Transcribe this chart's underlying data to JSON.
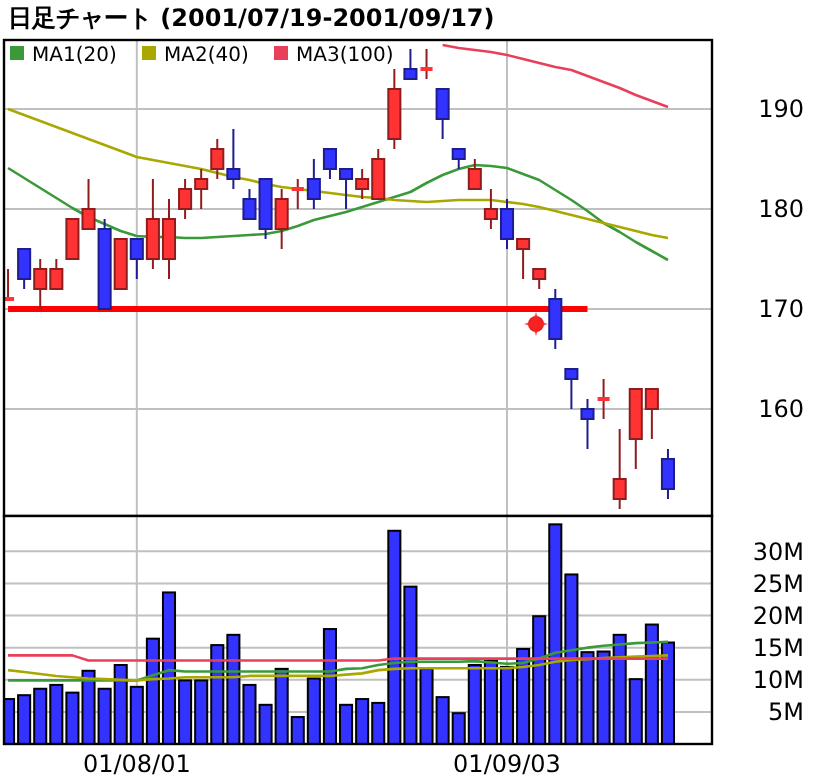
{
  "chart_data": [
    {
      "type": "candlestick",
      "title": "日足チャート (2001/07/19-2001/09/17)",
      "categories": [
        null,
        null,
        null,
        null,
        null,
        null,
        null,
        null,
        null,
        null,
        null,
        null,
        null,
        null,
        null,
        null,
        null,
        null,
        null,
        null,
        null,
        null,
        null,
        null,
        null,
        null,
        null,
        null,
        null,
        null,
        null,
        null,
        null,
        null,
        null,
        null,
        null,
        null,
        null,
        null,
        null,
        null
      ],
      "ohlc": [
        [
          171,
          174,
          171,
          171
        ],
        [
          176,
          176,
          172,
          173
        ],
        [
          172,
          175,
          170,
          174
        ],
        [
          172,
          175,
          172,
          174
        ],
        [
          175,
          179,
          175,
          179
        ],
        [
          178,
          183,
          178,
          180
        ],
        [
          178,
          179,
          170,
          170
        ],
        [
          172,
          177,
          172,
          177
        ],
        [
          177,
          177,
          173,
          175
        ],
        [
          175,
          183,
          174,
          179
        ],
        [
          175,
          181,
          173,
          179
        ],
        [
          180,
          183,
          179,
          182
        ],
        [
          182,
          184,
          180,
          183
        ],
        [
          184,
          187,
          183,
          186
        ],
        [
          184,
          188,
          182,
          183
        ],
        [
          181,
          182,
          179,
          179
        ],
        [
          183,
          183,
          177,
          178
        ],
        [
          178,
          182,
          176,
          181
        ],
        [
          182,
          183,
          180,
          182
        ],
        [
          183,
          185,
          180,
          181
        ],
        [
          186,
          186,
          183,
          184
        ],
        [
          184,
          184,
          180,
          183
        ],
        [
          182,
          184,
          181,
          183
        ],
        [
          181,
          186,
          181,
          185
        ],
        [
          187,
          194,
          186,
          192
        ],
        [
          194,
          196,
          193,
          193
        ],
        [
          194,
          196,
          193,
          194
        ],
        [
          192,
          192,
          187,
          189
        ],
        [
          186,
          186,
          184,
          185
        ],
        [
          182,
          185,
          182,
          184
        ],
        [
          179,
          182,
          178,
          180
        ],
        [
          180,
          181,
          176,
          177
        ],
        [
          176,
          177,
          173,
          177
        ],
        [
          173,
          174,
          172,
          174
        ],
        [
          171,
          172,
          166,
          167
        ],
        [
          164,
          164,
          160,
          163
        ],
        [
          160,
          161,
          156,
          159
        ],
        [
          161,
          163,
          159,
          161
        ],
        [
          151,
          158,
          150,
          153
        ],
        [
          157,
          162,
          154,
          162
        ],
        [
          160,
          162,
          157,
          162
        ],
        [
          155,
          156,
          151,
          152
        ]
      ],
      "colors": [
        "#ff3333",
        "#3333ff",
        "#ff3333",
        "#ff3333",
        "#ff3333",
        "#ff3333",
        "#3333ff",
        "#ff3333",
        "#3333ff",
        "#ff3333",
        "#ff3333",
        "#ff3333",
        "#ff3333",
        "#ff3333",
        "#3333ff",
        "#3333ff",
        "#3333ff",
        "#ff3333",
        "#ff3333",
        "#3333ff",
        "#3333ff",
        "#3333ff",
        "#ff3333",
        "#ff3333",
        "#ff3333",
        "#3333ff",
        "#ff3333",
        "#3333ff",
        "#3333ff",
        "#ff3333",
        "#ff3333",
        "#3333ff",
        "#ff3333",
        "#ff3333",
        "#3333ff",
        "#3333ff",
        "#3333ff",
        "#ff3333",
        "#ff3333",
        "#ff3333",
        "#ff3333",
        "#3333ff"
      ],
      "series": [
        {
          "type": "line",
          "name": "MA1(20)",
          "color": "#3a9a3a",
          "values": [
            184.1,
            183.1,
            182.1,
            181.1,
            180.1,
            179.2,
            178.5,
            177.8,
            177.3,
            177.2,
            177.2,
            177.1,
            177.1,
            177.2,
            177.3,
            177.4,
            177.5,
            177.8,
            178.3,
            178.9,
            179.3,
            179.7,
            180.2,
            180.7,
            181.2,
            181.7,
            182.6,
            183.4,
            184.0,
            184.4,
            184.3,
            184.1,
            183.5,
            182.9,
            181.9,
            180.9,
            179.8,
            178.6,
            177.7,
            176.7,
            175.8,
            174.9
          ]
        },
        {
          "type": "line",
          "name": "MA2(40)",
          "color": "#a8a800",
          "values": [
            190.0,
            189.4,
            188.8,
            188.2,
            187.6,
            187.0,
            186.4,
            185.8,
            185.2,
            184.9,
            184.6,
            184.3,
            184.0,
            183.6,
            183.2,
            182.9,
            182.5,
            182.2,
            182.0,
            181.8,
            181.6,
            181.4,
            181.2,
            181.1,
            180.9,
            180.8,
            180.7,
            180.8,
            180.9,
            180.9,
            180.9,
            180.7,
            180.5,
            180.2,
            179.8,
            179.4,
            179.0,
            178.6,
            178.2,
            177.8,
            177.4,
            177.1
          ]
        },
        {
          "type": "line",
          "name": "MA3(100)",
          "color": "#e8405a",
          "values": [
            null,
            null,
            null,
            null,
            null,
            null,
            null,
            null,
            null,
            null,
            null,
            null,
            null,
            null,
            null,
            null,
            null,
            null,
            null,
            null,
            null,
            null,
            null,
            null,
            null,
            null,
            null,
            196.4,
            196.1,
            195.9,
            195.7,
            195.4,
            195.0,
            194.6,
            194.2,
            193.9,
            193.3,
            192.7,
            192.1,
            191.4,
            190.8,
            190.2
          ]
        },
        {
          "type": "line",
          "color": "#ff0000",
          "values": [
            170,
            170,
            170,
            170,
            170,
            170,
            170,
            170,
            170,
            170,
            170,
            170,
            170,
            170,
            170,
            170,
            170,
            170,
            170,
            170,
            170,
            170,
            170,
            170,
            170,
            170,
            170,
            170,
            170,
            170,
            170,
            170,
            170,
            170,
            170,
            170,
            170,
            null,
            null,
            null,
            null,
            null
          ]
        }
      ],
      "ylim": [
        149.3,
        196.9
      ],
      "yticks": [
        160,
        170,
        180,
        190
      ],
      "grid": true,
      "legend": "top left",
      "tick_labels": "y"
    },
    {
      "type": "bar",
      "categories": [
        null,
        null,
        null,
        null,
        null,
        null,
        null,
        null,
        "01/08/01",
        null,
        null,
        null,
        null,
        null,
        null,
        null,
        null,
        null,
        null,
        null,
        null,
        null,
        null,
        null,
        null,
        null,
        null,
        null,
        null,
        null,
        null,
        "01/09/03",
        null,
        null,
        null,
        null,
        null,
        null,
        null,
        null,
        null,
        null
      ],
      "series": [
        {
          "type": "bar",
          "color": "#3333ff",
          "values": [
            7.0,
            7.6,
            8.6,
            9.2,
            8.0,
            11.4,
            8.6,
            12.3,
            8.9,
            16.4,
            23.6,
            9.9,
            9.9,
            15.4,
            17.0,
            9.2,
            6.1,
            11.7,
            4.2,
            10.2,
            17.9,
            6.1,
            7.0,
            6.4,
            33.2,
            24.5,
            11.7,
            7.3,
            4.8,
            12.3,
            13.0,
            12.0,
            14.8,
            19.9,
            34.2,
            26.4,
            14.3,
            14.4,
            17.0,
            10.1,
            18.6,
            15.8
          ]
        },
        {
          "type": "line",
          "color": "#3a9a3a",
          "values": [
            9.9,
            9.9,
            9.9,
            9.9,
            9.9,
            9.9,
            9.9,
            9.9,
            9.9,
            10.7,
            11.5,
            11.3,
            11.3,
            11.3,
            11.3,
            11.3,
            11.3,
            11.3,
            11.3,
            11.3,
            11.3,
            11.7,
            11.8,
            12.3,
            12.6,
            12.8,
            12.8,
            12.8,
            12.8,
            12.9,
            12.7,
            12.5,
            12.6,
            13.3,
            14.2,
            14.6,
            15.0,
            15.3,
            15.5,
            15.7,
            15.8,
            15.9
          ]
        },
        {
          "type": "line",
          "color": "#a8a800",
          "values": [
            11.5,
            11.2,
            10.9,
            10.6,
            10.4,
            10.2,
            10.1,
            10.0,
            9.9,
            10.1,
            10.2,
            10.4,
            10.4,
            10.4,
            10.4,
            10.6,
            10.6,
            10.6,
            10.6,
            10.6,
            10.6,
            10.8,
            11.0,
            11.5,
            11.7,
            11.8,
            11.8,
            11.8,
            11.8,
            11.8,
            11.8,
            11.8,
            12.0,
            12.3,
            12.8,
            13.1,
            13.2,
            13.4,
            13.5,
            13.6,
            13.7,
            13.8
          ]
        },
        {
          "type": "line",
          "color": "#e8405a",
          "values": [
            13.8,
            13.8,
            13.8,
            13.8,
            13.8,
            13.0,
            13.0,
            13.0,
            13.0,
            13.0,
            13.0,
            13.0,
            13.0,
            13.0,
            13.0,
            13.0,
            13.0,
            13.0,
            13.0,
            13.0,
            13.0,
            13.0,
            13.0,
            13.0,
            13.3,
            13.3,
            13.3,
            13.3,
            13.3,
            13.3,
            13.3,
            13.3,
            13.3,
            13.3,
            13.3,
            13.3,
            13.3,
            13.3,
            13.3,
            13.3,
            13.3,
            13.3
          ]
        }
      ],
      "ylim": [
        0,
        35.5
      ],
      "yticks": [
        {
          "value": 5,
          "label": "5M"
        },
        {
          "value": 10,
          "label": "10M"
        },
        {
          "value": 15,
          "label": "15M"
        },
        {
          "value": 20,
          "label": "20M"
        },
        {
          "value": 25,
          "label": "25M"
        },
        {
          "value": 30,
          "label": "30M"
        }
      ],
      "grid": true
    }
  ]
}
